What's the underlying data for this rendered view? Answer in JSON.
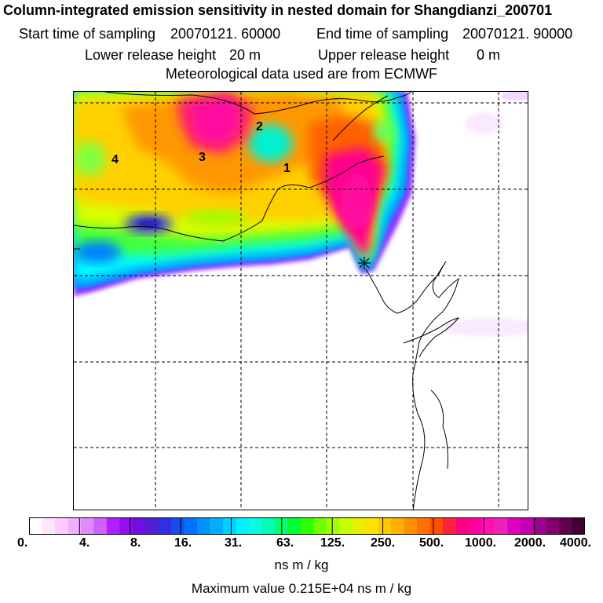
{
  "header": {
    "title": "Column-integrated emission sensitivity in nested domain for Shangdianzi_200701",
    "start_label": "Start time of sampling",
    "start_value": "20070121. 60000",
    "end_label": "End time of sampling",
    "end_value": "20070121. 90000",
    "lower_label": "Lower release height",
    "lower_value": "20 m",
    "upper_label": "Upper release height",
    "upper_value": "0 m",
    "met_line": "Meteorological data used are from ECMWF"
  },
  "map": {
    "region_labels": [
      "1",
      "2",
      "3",
      "4"
    ],
    "release_marker": "Shangdianzi release point"
  },
  "colorbar": {
    "tick_labels": [
      "0.",
      "4.",
      "8.",
      "16.",
      "31.",
      "63.",
      "125.",
      "250.",
      "500.",
      "1000.",
      "2000.",
      "4000."
    ],
    "colors": [
      "#ffffff",
      "#ffe6ff",
      "#ffccff",
      "#f0b0ff",
      "#e08cff",
      "#d060ff",
      "#b020ff",
      "#9010f0",
      "#7010e0",
      "#5020d0",
      "#3030e0",
      "#1050f0",
      "#0070ff",
      "#0090ff",
      "#00b0ff",
      "#00d0ff",
      "#00f0ff",
      "#00ffe0",
      "#00ffb0",
      "#00ff70",
      "#00ff30",
      "#30ff00",
      "#70ff00",
      "#a0ff00",
      "#c8ff00",
      "#e8f000",
      "#ffe000",
      "#ffc800",
      "#ffb000",
      "#ff9000",
      "#ff7000",
      "#ff5000",
      "#ff2040",
      "#ff0080",
      "#ff00a0",
      "#ff10b0",
      "#f020c0",
      "#e000c0",
      "#c000b0",
      "#a00090",
      "#800070",
      "#600050",
      "#400030"
    ],
    "unit": "ns m / kg",
    "max_label": "Maximum value",
    "max_value": "0.215E+04 ns m / kg"
  }
}
